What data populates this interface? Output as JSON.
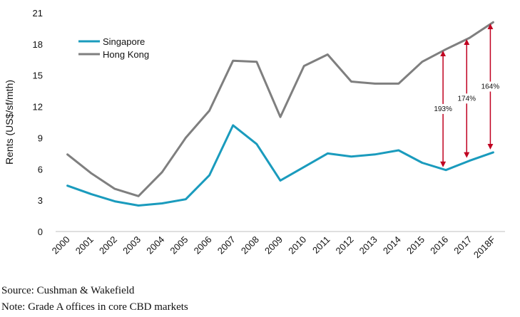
{
  "chart_data": {
    "type": "line",
    "x": [
      "2000",
      "2001",
      "2002",
      "2003",
      "2004",
      "2005",
      "2006",
      "2007",
      "2008",
      "2009",
      "2010",
      "2011",
      "2012",
      "2013",
      "2014",
      "2015",
      "2016",
      "2017",
      "2018F"
    ],
    "series": [
      {
        "name": "Singapore",
        "color": "#1a9bbd",
        "values": [
          4.4,
          3.6,
          2.9,
          2.5,
          2.7,
          3.1,
          5.4,
          10.2,
          8.4,
          4.9,
          6.2,
          7.5,
          7.2,
          7.4,
          7.8,
          6.6,
          5.9,
          6.8,
          7.6
        ]
      },
      {
        "name": "Hong Kong",
        "color": "#7f7f7f",
        "values": [
          7.4,
          5.6,
          4.1,
          3.4,
          5.7,
          9.0,
          11.6,
          16.4,
          16.3,
          11.0,
          15.9,
          17.0,
          14.4,
          14.2,
          14.2,
          16.3,
          17.5,
          18.6,
          20.1
        ]
      }
    ],
    "ylabel": "Rents (US$/sf/mth)",
    "ylim": [
      0,
      21
    ],
    "yticks": [
      0,
      3,
      6,
      9,
      12,
      15,
      18,
      21
    ],
    "grid": false,
    "legend_position": "top-left",
    "annotations": [
      {
        "x": "2016",
        "label": "193%",
        "color": "#c00020"
      },
      {
        "x": "2017",
        "label": "174%",
        "color": "#c00020"
      },
      {
        "x": "2018F",
        "label": "164%",
        "color": "#c00020"
      }
    ]
  },
  "footnotes": {
    "source": "Source: Cushman & Wakefield",
    "note": "Note: Grade A offices in core CBD markets"
  }
}
